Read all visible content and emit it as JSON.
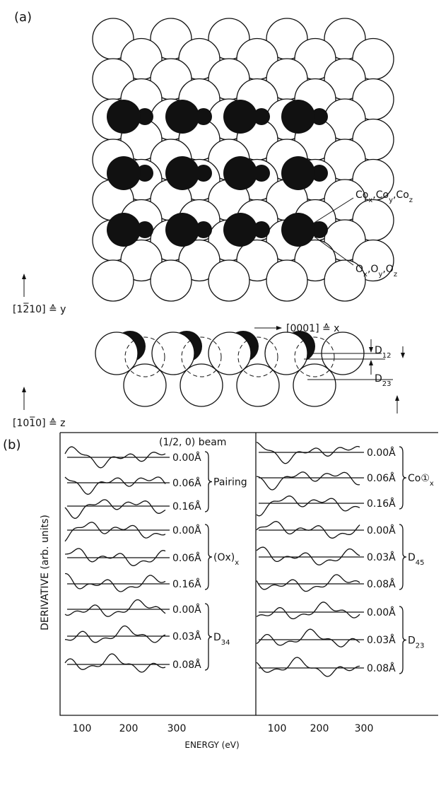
{
  "panel_a": {
    "label": "(a)",
    "co_label": [
      {
        "t": "Co"
      },
      {
        "s": "x"
      },
      {
        "t": ",Co"
      },
      {
        "s": "y"
      },
      {
        "t": ",Co"
      },
      {
        "s": "z"
      }
    ],
    "o_label": [
      {
        "t": "O"
      },
      {
        "s": "x"
      },
      {
        "t": ",O"
      },
      {
        "s": "y"
      },
      {
        "t": ",O"
      },
      {
        "s": "z"
      }
    ],
    "y_axis": [
      {
        "t": "[12̅10] ≙ y"
      }
    ],
    "x_axis": [
      {
        "t": "[0001] ≙ x"
      }
    ],
    "z_axis": [
      {
        "t": "[101̅0] ≙ z"
      }
    ],
    "d12": [
      {
        "t": "D"
      },
      {
        "s": "12"
      }
    ],
    "d23": [
      {
        "t": "D"
      },
      {
        "s": "23"
      }
    ]
  },
  "panel_b": {
    "label": "(b)",
    "beam": "(1/2, 0) beam",
    "y_label": "DERIVATIVE  (arb. units)",
    "x_label": "ENERGY  (eV)",
    "x_ticks_left": [
      "100",
      "200",
      "300"
    ],
    "x_ticks_right": [
      "100",
      "200",
      "300"
    ],
    "left_curves": [
      "0.00Å",
      "0.06Å",
      "0.16Å",
      "0.00Å",
      "0.06Å",
      "0.16Å",
      "0.00Å",
      "0.03Å",
      "0.08Å"
    ],
    "right_curves": [
      "0.00Å",
      "0.06Å",
      "0.16Å",
      "0.00Å",
      "0.03Å",
      "0.08Å",
      "0.00Å",
      "0.03Å",
      "0.08Å"
    ],
    "left_groups": [
      [
        {
          "t": "Pairing"
        }
      ],
      [
        {
          "t": "(Ox)"
        },
        {
          "s": "x"
        }
      ],
      [
        {
          "t": "D"
        },
        {
          "s": "34"
        }
      ]
    ],
    "right_groups": [
      [
        {
          "t": "Co①"
        },
        {
          "s": "x"
        }
      ],
      [
        {
          "t": "D"
        },
        {
          "s": "45"
        }
      ],
      [
        {
          "t": "D"
        },
        {
          "s": "23"
        }
      ]
    ]
  }
}
